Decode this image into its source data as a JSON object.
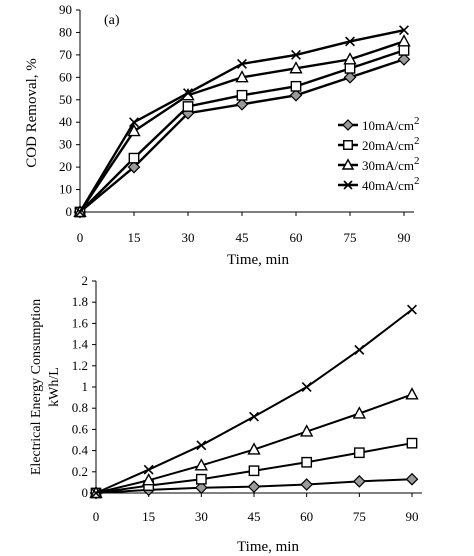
{
  "chart_data": [
    {
      "type": "line",
      "panel_label": "(a)",
      "xlabel": "Time, min",
      "ylabel": "COD Removal, %",
      "x": [
        0,
        15,
        30,
        45,
        60,
        75,
        90
      ],
      "xlim": [
        0,
        90
      ],
      "ylim": [
        0,
        90
      ],
      "yticks": [
        0,
        10,
        20,
        30,
        40,
        50,
        60,
        70,
        80,
        90
      ],
      "grid": false,
      "legend_position": "right",
      "series": [
        {
          "name": "10mA/cm2",
          "name_base": "10mA/cm",
          "name_sup": "2",
          "marker": "diamond-filled",
          "values": [
            0,
            20,
            44,
            48,
            52,
            60,
            68
          ]
        },
        {
          "name": "20mA/cm2",
          "name_base": "20mA/cm",
          "name_sup": "2",
          "marker": "square-open",
          "values": [
            0,
            24,
            47,
            52,
            56,
            64,
            72
          ]
        },
        {
          "name": "30mA/cm2",
          "name_base": "30mA/cm",
          "name_sup": "2",
          "marker": "triangle-open",
          "values": [
            0,
            36,
            52,
            60,
            64,
            68,
            76
          ]
        },
        {
          "name": "40mA/cm2",
          "name_base": "40mA/cm",
          "name_sup": "2",
          "marker": "x",
          "values": [
            0,
            40,
            53,
            66,
            70,
            76,
            81
          ]
        }
      ]
    },
    {
      "type": "line",
      "xlabel": "Time, min",
      "ylabel_line1": "Electrical Energy Consumption",
      "ylabel_line2": "kWh/L",
      "x": [
        0,
        15,
        30,
        45,
        60,
        75,
        90
      ],
      "xlim": [
        0,
        90
      ],
      "ylim": [
        0,
        2
      ],
      "yticks": [
        "0",
        "0.2",
        "0.4",
        "0.6",
        "0.8",
        "1",
        "1.2",
        "1.4",
        "1.6",
        "1.8",
        "2"
      ],
      "grid": false,
      "series": [
        {
          "marker": "diamond-filled",
          "values": [
            0,
            0.03,
            0.05,
            0.06,
            0.08,
            0.11,
            0.13
          ]
        },
        {
          "marker": "square-open",
          "values": [
            0,
            0.07,
            0.13,
            0.21,
            0.29,
            0.38,
            0.47
          ]
        },
        {
          "marker": "triangle-open",
          "values": [
            0,
            0.12,
            0.26,
            0.41,
            0.58,
            0.75,
            0.93
          ]
        },
        {
          "marker": "x",
          "values": [
            0,
            0.22,
            0.45,
            0.72,
            1.0,
            1.35,
            1.73
          ]
        }
      ]
    }
  ]
}
